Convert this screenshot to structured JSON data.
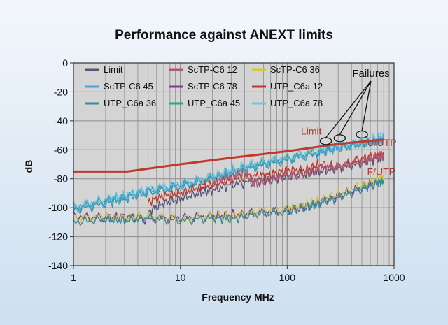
{
  "chart_data": {
    "type": "line",
    "title": "Performance against ANEXT limits",
    "xlabel": "Frequency MHz",
    "ylabel": "dB",
    "x_scale": "log",
    "xlim": [
      1,
      1000
    ],
    "ylim": [
      -140,
      0
    ],
    "x_ticks": [
      "1",
      "10",
      "100",
      "1000"
    ],
    "y_ticks": [
      "0",
      "-20",
      "-40",
      "-60",
      "-80",
      "-100",
      "-120",
      "-140"
    ],
    "grid": true,
    "legend_position": "top-left",
    "colors": {
      "plot_background": "#d4d4d4",
      "grid": "#8d8d8d",
      "limit_line": "#c0392b",
      "annotation_text": "#b03a2e"
    },
    "annotations": {
      "failures": "Failures",
      "limit": "Limit",
      "utp": "U/UTP",
      "ftp": "F/UTP"
    },
    "series": [
      {
        "name": "Limit",
        "color": "#55557a",
        "style": "thin"
      },
      {
        "name": "ScTP-C6 12",
        "color": "#b5566f",
        "style": "thin"
      },
      {
        "name": "ScTP-C6 36",
        "color": "#d8c43a",
        "style": "thin"
      },
      {
        "name": "ScTP-C6 45",
        "color": "#46a6d8",
        "style": "thin"
      },
      {
        "name": "ScTP-C6 78",
        "color": "#7b3e8f",
        "style": "thin"
      },
      {
        "name": "UTP_C6a 12",
        "color": "#c0392b",
        "style": "thin"
      },
      {
        "name": "UTP_C6a 36",
        "color": "#2f8fa0",
        "style": "thin"
      },
      {
        "name": "UTP_C6a 45",
        "color": "#2aa58c",
        "style": "thin"
      },
      {
        "name": "UTP_C6a 78",
        "color": "#6fc3e3",
        "style": "thin"
      }
    ],
    "limit_curve": {
      "name": "Limit",
      "color": "#c0392b",
      "x": [
        1,
        3.2,
        10,
        30,
        100,
        300,
        800
      ],
      "y": [
        -75,
        -75,
        -70,
        -65.5,
        -61,
        -56,
        -53
      ]
    },
    "curves": [
      {
        "name": "UTP_C6a 45",
        "color": "#2aa58c",
        "x": [
          1,
          2,
          3,
          5,
          10,
          20,
          30,
          50,
          100,
          200,
          300,
          500,
          700,
          800
        ],
        "y": [
          -100,
          -95,
          -92,
          -88,
          -84,
          -79,
          -75,
          -70,
          -66,
          -61,
          -58,
          -55,
          -53,
          -52
        ]
      },
      {
        "name": "UTP_C6a 36",
        "color": "#2f8fa0",
        "x": [
          1,
          2,
          3,
          5,
          10,
          20,
          30,
          50,
          100,
          200,
          300,
          500,
          700,
          800
        ],
        "y": [
          -102,
          -97,
          -94,
          -90,
          -86,
          -80,
          -77,
          -72,
          -67,
          -62,
          -59,
          -56,
          -54,
          -53
        ]
      },
      {
        "name": "UTP_C6a 78",
        "color": "#6fc3e3",
        "x": [
          1,
          2,
          3,
          5,
          10,
          20,
          30,
          50,
          100,
          200,
          300,
          500,
          700,
          800
        ],
        "y": [
          -99,
          -94,
          -91,
          -87,
          -83,
          -78,
          -74,
          -69,
          -65,
          -60,
          -57,
          -54,
          -52,
          -51
        ]
      },
      {
        "name": "ScTP-C6 45",
        "color": "#46a6d8",
        "x": [
          1,
          2,
          3,
          5,
          10,
          20,
          30,
          50,
          100,
          200,
          300,
          500,
          700,
          800
        ],
        "y": [
          -101,
          -96,
          -93,
          -89,
          -85,
          -80,
          -76,
          -71,
          -67,
          -62,
          -59,
          -56,
          -54,
          -53
        ]
      },
      {
        "name": "UTP_C6a 12",
        "color": "#c0392b",
        "x": [
          5,
          7,
          10,
          15,
          20,
          30,
          50,
          70,
          100,
          150,
          200,
          300,
          500,
          700,
          800
        ],
        "y": [
          -96,
          -92,
          -90,
          -86,
          -84,
          -80,
          -78,
          -77,
          -74,
          -74,
          -70,
          -72,
          -66,
          -64,
          -63
        ]
      },
      {
        "name": "Limit",
        "color": "#55557a",
        "x": [
          5,
          7,
          10,
          15,
          20,
          30,
          50,
          70,
          100,
          150,
          200,
          300,
          500,
          700,
          800
        ],
        "y": [
          -103,
          -97,
          -94,
          -90,
          -88,
          -84,
          -82,
          -81,
          -78,
          -77,
          -75,
          -73,
          -69,
          -66,
          -64
        ]
      },
      {
        "name": "ScTP-C6 12",
        "color": "#b5566f",
        "x": [
          20,
          30,
          40,
          50,
          70,
          100,
          150,
          200,
          300,
          500,
          700,
          800
        ],
        "y": [
          -84,
          -79,
          -76,
          -84,
          -80,
          -78,
          -76,
          -73,
          -72,
          -68,
          -65,
          -64
        ]
      },
      {
        "name": "ScTP-C6 78",
        "color": "#7b3e8f",
        "x": [
          1,
          2,
          3,
          5,
          10,
          20,
          30,
          50,
          100,
          150,
          200,
          300,
          500,
          700,
          800
        ],
        "y": [
          -106,
          -107,
          -106,
          -108,
          -107,
          -106,
          -105,
          -104,
          -102,
          -99,
          -96,
          -92,
          -86,
          -82,
          -80
        ]
      },
      {
        "name": "ScTP-C6 36",
        "color": "#d8c43a",
        "x": [
          1,
          2,
          3,
          5,
          10,
          20,
          30,
          50,
          100,
          150,
          200,
          300,
          500,
          700,
          800
        ],
        "y": [
          -108,
          -106,
          -107,
          -106,
          -108,
          -106,
          -106,
          -103,
          -101,
          -98,
          -95,
          -91,
          -85,
          -81,
          -79
        ]
      },
      {
        "name": "UTP_C6a 36",
        "color": "#2f8fa0",
        "x": [
          1,
          2,
          3,
          5,
          10,
          20,
          30,
          50,
          100,
          150,
          200,
          300,
          500,
          700,
          800
        ],
        "y": [
          -110,
          -108,
          -109,
          -107,
          -109,
          -107,
          -108,
          -104,
          -103,
          -100,
          -97,
          -93,
          -87,
          -83,
          -81
        ]
      }
    ]
  }
}
